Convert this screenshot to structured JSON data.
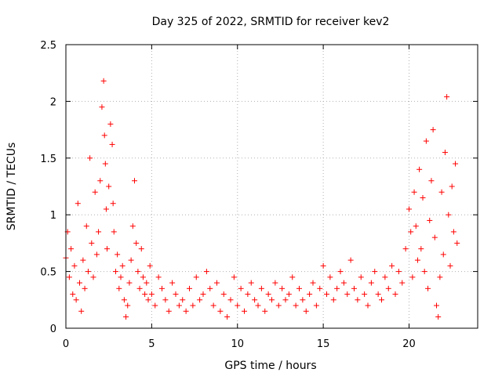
{
  "chart_data": {
    "type": "scatter",
    "title": "Day 325 of 2022, SRMTID for receiver kev2",
    "xlabel": "GPS time / hours",
    "ylabel": "SRMTID / TECUs",
    "xlim": [
      0,
      24
    ],
    "ylim": [
      0,
      2.5
    ],
    "xticks": [
      0,
      5,
      10,
      15,
      20
    ],
    "xtick_labels": [
      "0",
      "5",
      "10",
      "15",
      "20"
    ],
    "yticks": [
      0,
      0.5,
      1,
      1.5,
      2,
      2.5
    ],
    "ytick_labels": [
      "0",
      "0.5",
      "1",
      "1.5",
      "2",
      "2.5"
    ],
    "grid": true,
    "marker": "+",
    "series": [
      {
        "name": "kev2",
        "color": "#ff0000",
        "x": [
          0.0,
          0.1,
          0.2,
          0.3,
          0.4,
          0.5,
          0.6,
          0.7,
          0.8,
          0.9,
          1.0,
          1.1,
          1.2,
          1.3,
          1.4,
          1.5,
          1.6,
          1.7,
          1.8,
          1.9,
          2.0,
          2.1,
          2.2,
          2.25,
          2.3,
          2.35,
          2.4,
          2.5,
          2.6,
          2.7,
          2.75,
          2.8,
          2.9,
          3.0,
          3.1,
          3.2,
          3.3,
          3.4,
          3.5,
          3.6,
          3.7,
          3.8,
          3.9,
          4.0,
          4.1,
          4.2,
          4.3,
          4.4,
          4.5,
          4.6,
          4.7,
          4.8,
          4.9,
          5.0,
          5.2,
          5.4,
          5.6,
          5.8,
          6.0,
          6.2,
          6.4,
          6.6,
          6.8,
          7.0,
          7.2,
          7.4,
          7.6,
          7.8,
          8.0,
          8.2,
          8.4,
          8.6,
          8.8,
          9.0,
          9.2,
          9.4,
          9.6,
          9.8,
          10.0,
          10.2,
          10.4,
          10.6,
          10.8,
          11.0,
          11.2,
          11.4,
          11.6,
          11.8,
          12.0,
          12.2,
          12.4,
          12.6,
          12.8,
          13.0,
          13.2,
          13.4,
          13.6,
          13.8,
          14.0,
          14.2,
          14.4,
          14.6,
          14.8,
          15.0,
          15.2,
          15.4,
          15.6,
          15.8,
          16.0,
          16.2,
          16.4,
          16.6,
          16.8,
          17.0,
          17.2,
          17.4,
          17.6,
          17.8,
          18.0,
          18.2,
          18.4,
          18.6,
          18.8,
          19.0,
          19.2,
          19.4,
          19.6,
          19.8,
          20.0,
          20.1,
          20.2,
          20.3,
          20.4,
          20.5,
          20.6,
          20.7,
          20.8,
          20.9,
          21.0,
          21.1,
          21.2,
          21.3,
          21.4,
          21.5,
          21.6,
          21.7,
          21.8,
          21.9,
          22.0,
          22.1,
          22.2,
          22.3,
          22.4,
          22.5,
          22.6,
          22.7,
          22.8
        ],
        "y": [
          0.62,
          0.85,
          0.45,
          0.7,
          0.3,
          0.55,
          0.25,
          1.1,
          0.4,
          0.15,
          0.6,
          0.35,
          0.9,
          0.5,
          1.5,
          0.75,
          0.45,
          1.2,
          0.65,
          0.85,
          1.3,
          1.95,
          2.18,
          1.7,
          1.45,
          1.05,
          0.7,
          1.25,
          1.8,
          1.62,
          1.1,
          0.85,
          0.5,
          0.65,
          0.35,
          0.45,
          0.55,
          0.25,
          0.1,
          0.2,
          0.4,
          0.6,
          0.9,
          1.3,
          0.75,
          0.5,
          0.35,
          0.7,
          0.45,
          0.3,
          0.4,
          0.25,
          0.55,
          0.3,
          0.2,
          0.45,
          0.35,
          0.25,
          0.15,
          0.4,
          0.3,
          0.2,
          0.25,
          0.15,
          0.35,
          0.2,
          0.45,
          0.25,
          0.3,
          0.5,
          0.35,
          0.2,
          0.4,
          0.15,
          0.3,
          0.1,
          0.25,
          0.45,
          0.2,
          0.35,
          0.15,
          0.3,
          0.4,
          0.25,
          0.2,
          0.35,
          0.15,
          0.3,
          0.25,
          0.4,
          0.2,
          0.35,
          0.25,
          0.3,
          0.45,
          0.2,
          0.35,
          0.25,
          0.15,
          0.3,
          0.4,
          0.2,
          0.35,
          0.55,
          0.3,
          0.45,
          0.25,
          0.35,
          0.5,
          0.4,
          0.3,
          0.6,
          0.35,
          0.25,
          0.45,
          0.3,
          0.2,
          0.4,
          0.5,
          0.3,
          0.25,
          0.45,
          0.35,
          0.55,
          0.3,
          0.5,
          0.4,
          0.7,
          1.05,
          0.85,
          0.45,
          1.2,
          0.9,
          0.6,
          1.4,
          0.7,
          1.15,
          0.5,
          1.65,
          0.35,
          0.95,
          1.3,
          1.75,
          0.8,
          0.2,
          0.1,
          0.45,
          1.2,
          0.65,
          1.55,
          2.04,
          1.0,
          0.55,
          1.25,
          0.85,
          1.45,
          0.75
        ]
      }
    ]
  }
}
